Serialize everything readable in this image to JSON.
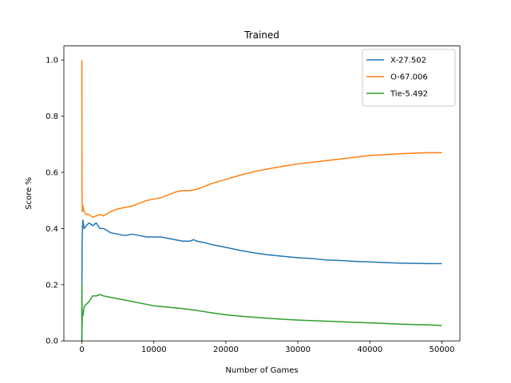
{
  "chart_data": {
    "type": "line",
    "title": "Trained",
    "xlabel": "Number of Games",
    "ylabel": "Score %",
    "xlim": [
      -2500,
      52500
    ],
    "ylim": [
      0,
      1.05
    ],
    "xticks": [
      0,
      10000,
      20000,
      30000,
      40000,
      50000
    ],
    "yticks": [
      0.0,
      0.2,
      0.4,
      0.6,
      0.8,
      1.0
    ],
    "xtick_labels": [
      "0",
      "10000",
      "20000",
      "30000",
      "40000",
      "50000"
    ],
    "ytick_labels": [
      "0.0",
      "0.2",
      "0.4",
      "0.6",
      "0.8",
      "1.0"
    ],
    "grid": false,
    "legend_position": "top-right",
    "series": [
      {
        "name": "X-27.502",
        "color": "#1f77b4",
        "points": [
          [
            1,
            0.0
          ],
          [
            10,
            0.2
          ],
          [
            30,
            0.35
          ],
          [
            80,
            0.4
          ],
          [
            150,
            0.43
          ],
          [
            300,
            0.4
          ],
          [
            600,
            0.41
          ],
          [
            1000,
            0.42
          ],
          [
            1500,
            0.41
          ],
          [
            2000,
            0.42
          ],
          [
            2500,
            0.4
          ],
          [
            3000,
            0.4
          ],
          [
            4000,
            0.385
          ],
          [
            5000,
            0.38
          ],
          [
            6000,
            0.375
          ],
          [
            7000,
            0.38
          ],
          [
            8000,
            0.375
          ],
          [
            9000,
            0.37
          ],
          [
            10000,
            0.37
          ],
          [
            11000,
            0.37
          ],
          [
            12000,
            0.365
          ],
          [
            13000,
            0.36
          ],
          [
            14000,
            0.355
          ],
          [
            15000,
            0.355
          ],
          [
            15500,
            0.36
          ],
          [
            16000,
            0.355
          ],
          [
            17000,
            0.35
          ],
          [
            18000,
            0.343
          ],
          [
            20000,
            0.333
          ],
          [
            22000,
            0.322
          ],
          [
            24000,
            0.313
          ],
          [
            26000,
            0.306
          ],
          [
            28000,
            0.301
          ],
          [
            30000,
            0.296
          ],
          [
            32000,
            0.293
          ],
          [
            34000,
            0.288
          ],
          [
            36000,
            0.286
          ],
          [
            38000,
            0.283
          ],
          [
            40000,
            0.281
          ],
          [
            42000,
            0.279
          ],
          [
            44000,
            0.277
          ],
          [
            46000,
            0.276
          ],
          [
            48000,
            0.275
          ],
          [
            50000,
            0.275
          ]
        ]
      },
      {
        "name": "O-67.006",
        "color": "#ff7f0e",
        "points": [
          [
            1,
            1.0
          ],
          [
            10,
            0.6
          ],
          [
            30,
            0.5
          ],
          [
            80,
            0.46
          ],
          [
            150,
            0.48
          ],
          [
            300,
            0.46
          ],
          [
            600,
            0.45
          ],
          [
            1000,
            0.45
          ],
          [
            1500,
            0.44
          ],
          [
            2000,
            0.445
          ],
          [
            2500,
            0.45
          ],
          [
            3000,
            0.445
          ],
          [
            4000,
            0.46
          ],
          [
            5000,
            0.47
          ],
          [
            6000,
            0.475
          ],
          [
            7000,
            0.48
          ],
          [
            8000,
            0.49
          ],
          [
            9000,
            0.5
          ],
          [
            10000,
            0.505
          ],
          [
            11000,
            0.51
          ],
          [
            12000,
            0.52
          ],
          [
            13000,
            0.53
          ],
          [
            14000,
            0.535
          ],
          [
            15000,
            0.535
          ],
          [
            16000,
            0.54
          ],
          [
            17000,
            0.55
          ],
          [
            18000,
            0.56
          ],
          [
            20000,
            0.575
          ],
          [
            22000,
            0.59
          ],
          [
            24000,
            0.603
          ],
          [
            26000,
            0.613
          ],
          [
            28000,
            0.622
          ],
          [
            30000,
            0.63
          ],
          [
            32000,
            0.636
          ],
          [
            34000,
            0.642
          ],
          [
            36000,
            0.648
          ],
          [
            38000,
            0.654
          ],
          [
            40000,
            0.66
          ],
          [
            42000,
            0.663
          ],
          [
            44000,
            0.666
          ],
          [
            46000,
            0.668
          ],
          [
            48000,
            0.67
          ],
          [
            50000,
            0.67
          ]
        ]
      },
      {
        "name": "Tie-5.492",
        "color": "#2ca02c",
        "points": [
          [
            1,
            0.0
          ],
          [
            10,
            0.2
          ],
          [
            30,
            0.05
          ],
          [
            80,
            0.1
          ],
          [
            150,
            0.09
          ],
          [
            300,
            0.12
          ],
          [
            600,
            0.13
          ],
          [
            1000,
            0.14
          ],
          [
            1500,
            0.16
          ],
          [
            2000,
            0.16
          ],
          [
            2500,
            0.165
          ],
          [
            3000,
            0.16
          ],
          [
            4000,
            0.155
          ],
          [
            5000,
            0.15
          ],
          [
            6000,
            0.145
          ],
          [
            7000,
            0.14
          ],
          [
            8000,
            0.135
          ],
          [
            9000,
            0.13
          ],
          [
            10000,
            0.125
          ],
          [
            12000,
            0.12
          ],
          [
            14000,
            0.115
          ],
          [
            16000,
            0.108
          ],
          [
            18000,
            0.1
          ],
          [
            20000,
            0.093
          ],
          [
            22000,
            0.088
          ],
          [
            24000,
            0.084
          ],
          [
            26000,
            0.08
          ],
          [
            28000,
            0.077
          ],
          [
            30000,
            0.074
          ],
          [
            32000,
            0.072
          ],
          [
            34000,
            0.07
          ],
          [
            36000,
            0.068
          ],
          [
            38000,
            0.066
          ],
          [
            40000,
            0.064
          ],
          [
            42000,
            0.062
          ],
          [
            44000,
            0.06
          ],
          [
            46000,
            0.058
          ],
          [
            48000,
            0.057
          ],
          [
            50000,
            0.055
          ]
        ]
      }
    ]
  }
}
